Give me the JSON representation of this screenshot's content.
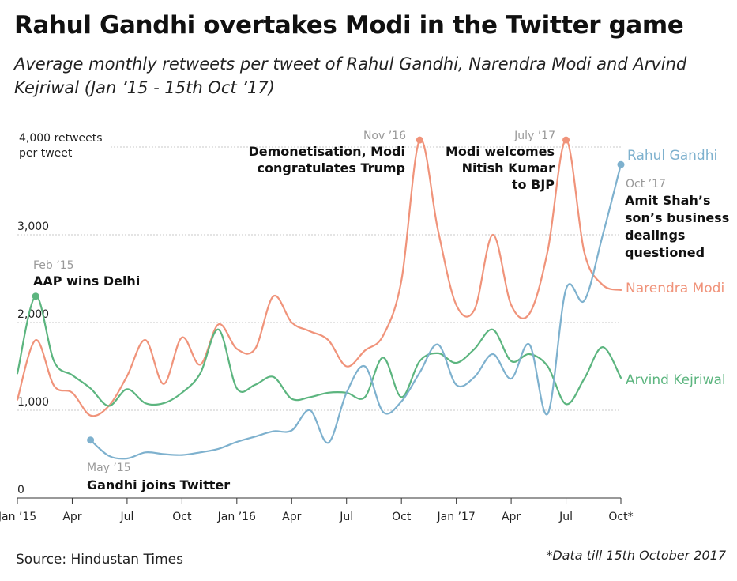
{
  "header": {
    "title": "Rahul Gandhi overtakes Modi in the Twitter game",
    "subtitle": "Average monthly retweets per tweet of Rahul Gandhi, Narendra Modi and Arvind Kejriwal (Jan ’15 - 15th Oct ’17)"
  },
  "footer": {
    "source": "Source: Hindustan Times",
    "note": "*Data till 15th October 2017"
  },
  "chart_data": {
    "type": "line",
    "title": "Rahul Gandhi overtakes Modi in the Twitter game",
    "subtitle": "Average monthly retweets per tweet of Rahul Gandhi, Narendra Modi and Arvind Kejriwal (Jan ’15 - 15th Oct ’17)",
    "ylabel": "4,000 retweets per tweet",
    "ylabel_lines": [
      "4,000 retweets",
      "per tweet"
    ],
    "ylim": [
      0,
      4000
    ],
    "x_range": [
      "Jan 2015",
      "Oct 2017"
    ],
    "grid": true,
    "yticks": [
      {
        "value": 0,
        "label": "0"
      },
      {
        "value": 1000,
        "label": "1,000"
      },
      {
        "value": 2000,
        "label": "2,000"
      },
      {
        "value": 3000,
        "label": "3,000"
      }
    ],
    "xticks": [
      {
        "x": 0,
        "label": "Jan ’15"
      },
      {
        "x": 3,
        "label": "Apr"
      },
      {
        "x": 6,
        "label": "Jul"
      },
      {
        "x": 9,
        "label": "Oct"
      },
      {
        "x": 12,
        "label": "Jan ’16"
      },
      {
        "x": 15,
        "label": "Apr"
      },
      {
        "x": 18,
        "label": "Jul"
      },
      {
        "x": 21,
        "label": "Oct"
      },
      {
        "x": 24,
        "label": "Jan ’17"
      },
      {
        "x": 27,
        "label": "Apr"
      },
      {
        "x": 30,
        "label": "Jul"
      },
      {
        "x": 33,
        "label": "Oct*"
      }
    ],
    "series": [
      {
        "name": "Narendra Modi",
        "color": "#f0937a",
        "points": [
          [
            0,
            1120
          ],
          [
            1,
            1800
          ],
          [
            2,
            1280
          ],
          [
            3,
            1200
          ],
          [
            4,
            940
          ],
          [
            5,
            1050
          ],
          [
            6,
            1390
          ],
          [
            7,
            1800
          ],
          [
            8,
            1300
          ],
          [
            9,
            1830
          ],
          [
            10,
            1520
          ],
          [
            11,
            1980
          ],
          [
            12,
            1700
          ],
          [
            13,
            1700
          ],
          [
            14,
            2300
          ],
          [
            15,
            2000
          ],
          [
            16,
            1900
          ],
          [
            17,
            1800
          ],
          [
            18,
            1500
          ],
          [
            19,
            1680
          ],
          [
            20,
            1850
          ],
          [
            21,
            2480
          ],
          [
            22,
            4080
          ],
          [
            23,
            3050
          ],
          [
            24,
            2200
          ],
          [
            25,
            2150
          ],
          [
            26,
            3000
          ],
          [
            27,
            2200
          ],
          [
            28,
            2100
          ],
          [
            29,
            2820
          ],
          [
            30,
            4080
          ],
          [
            31,
            2800
          ],
          [
            32,
            2430
          ],
          [
            33,
            2370
          ]
        ]
      },
      {
        "name": "Arvind Kejriwal",
        "color": "#5cb57f",
        "points": [
          [
            0,
            1420
          ],
          [
            1,
            2300
          ],
          [
            2,
            1560
          ],
          [
            3,
            1400
          ],
          [
            4,
            1250
          ],
          [
            5,
            1050
          ],
          [
            6,
            1240
          ],
          [
            7,
            1080
          ],
          [
            8,
            1080
          ],
          [
            9,
            1200
          ],
          [
            10,
            1420
          ],
          [
            11,
            1920
          ],
          [
            12,
            1250
          ],
          [
            13,
            1290
          ],
          [
            14,
            1380
          ],
          [
            15,
            1130
          ],
          [
            16,
            1150
          ],
          [
            17,
            1200
          ],
          [
            18,
            1200
          ],
          [
            19,
            1150
          ],
          [
            20,
            1600
          ],
          [
            21,
            1150
          ],
          [
            22,
            1560
          ],
          [
            23,
            1650
          ],
          [
            24,
            1540
          ],
          [
            25,
            1700
          ],
          [
            26,
            1920
          ],
          [
            27,
            1560
          ],
          [
            28,
            1640
          ],
          [
            29,
            1500
          ],
          [
            30,
            1070
          ],
          [
            31,
            1360
          ],
          [
            32,
            1720
          ],
          [
            33,
            1370
          ]
        ]
      },
      {
        "name": "Rahul Gandhi",
        "color": "#7eb1ce",
        "points": [
          [
            4,
            660
          ],
          [
            5,
            480
          ],
          [
            6,
            450
          ],
          [
            7,
            520
          ],
          [
            8,
            500
          ],
          [
            9,
            490
          ],
          [
            10,
            520
          ],
          [
            11,
            560
          ],
          [
            12,
            640
          ],
          [
            13,
            700
          ],
          [
            14,
            760
          ],
          [
            15,
            770
          ],
          [
            16,
            1000
          ],
          [
            17,
            630
          ],
          [
            18,
            1200
          ],
          [
            19,
            1500
          ],
          [
            20,
            980
          ],
          [
            21,
            1100
          ],
          [
            22,
            1430
          ],
          [
            23,
            1750
          ],
          [
            24,
            1290
          ],
          [
            25,
            1380
          ],
          [
            26,
            1640
          ],
          [
            27,
            1360
          ],
          [
            28,
            1750
          ],
          [
            29,
            960
          ],
          [
            30,
            2380
          ],
          [
            31,
            2250
          ],
          [
            32,
            2990
          ],
          [
            33,
            3800
          ]
        ]
      }
    ],
    "series_labels": [
      {
        "series": "Rahul Gandhi",
        "text": "Rahul Gandhi"
      },
      {
        "series": "Narendra Modi",
        "text": "Narendra Modi"
      },
      {
        "series": "Arvind Kejriwal",
        "text": "Arvind Kejriwal"
      }
    ],
    "annotations": [
      {
        "series": "Narendra Modi",
        "x": 22,
        "date": "Nov ’16",
        "lines": [
          "Demonetisation, Modi",
          "congratulates Trump"
        ]
      },
      {
        "series": "Narendra Modi",
        "x": 30,
        "date": "July ’17",
        "lines": [
          "Modi welcomes",
          "Nitish Kumar",
          "to BJP"
        ]
      },
      {
        "series": "Rahul Gandhi",
        "x": 33,
        "date": "Oct ’17",
        "lines": [
          "Amit Shah’s",
          "son’s business",
          "dealings",
          "questioned"
        ]
      },
      {
        "series": "Arvind Kejriwal",
        "x": 1,
        "date": "Feb ’15",
        "lines": [
          "AAP wins Delhi"
        ]
      },
      {
        "series": "Rahul Gandhi",
        "x": 4,
        "date": "May ’15",
        "lines": [
          "Gandhi joins Twitter"
        ]
      }
    ]
  }
}
